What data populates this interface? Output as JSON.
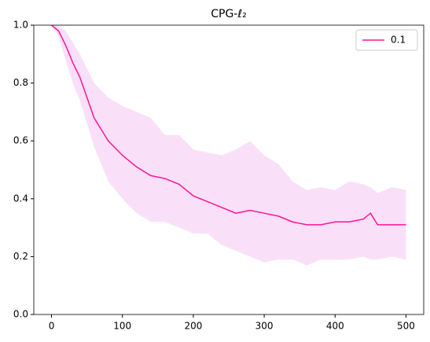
{
  "chart_data": {
    "type": "line",
    "title": "CPG-ℓ₂",
    "x": [
      0,
      10,
      20,
      30,
      40,
      50,
      60,
      80,
      100,
      120,
      140,
      160,
      180,
      200,
      220,
      240,
      260,
      280,
      300,
      320,
      340,
      360,
      380,
      400,
      420,
      440,
      450,
      460,
      480,
      500
    ],
    "series": [
      {
        "name": "0.1",
        "color": "#ff1493",
        "band_color": "#f9e0f8",
        "values": [
          1.0,
          0.98,
          0.93,
          0.87,
          0.82,
          0.75,
          0.68,
          0.6,
          0.55,
          0.51,
          0.48,
          0.47,
          0.45,
          0.41,
          0.39,
          0.37,
          0.35,
          0.36,
          0.35,
          0.34,
          0.32,
          0.31,
          0.31,
          0.32,
          0.32,
          0.33,
          0.35,
          0.31,
          0.31,
          0.31
        ],
        "lower": [
          1.0,
          0.96,
          0.88,
          0.8,
          0.74,
          0.66,
          0.58,
          0.46,
          0.4,
          0.35,
          0.32,
          0.32,
          0.3,
          0.28,
          0.28,
          0.24,
          0.22,
          0.2,
          0.18,
          0.19,
          0.19,
          0.17,
          0.19,
          0.19,
          0.19,
          0.2,
          0.19,
          0.19,
          0.2,
          0.19
        ],
        "upper": [
          1.0,
          1.0,
          0.98,
          0.94,
          0.9,
          0.85,
          0.8,
          0.75,
          0.72,
          0.7,
          0.68,
          0.62,
          0.62,
          0.57,
          0.56,
          0.55,
          0.57,
          0.6,
          0.55,
          0.52,
          0.46,
          0.43,
          0.44,
          0.43,
          0.46,
          0.45,
          0.44,
          0.42,
          0.44,
          0.43
        ]
      }
    ],
    "xlim": [
      -25,
      525
    ],
    "ylim": [
      0,
      1
    ],
    "xticks": [
      0,
      100,
      200,
      300,
      400,
      500
    ],
    "yticks": [
      {
        "value": 0,
        "label": "0.0"
      },
      0.2,
      0.4,
      0.6,
      0.8,
      {
        "value": 1,
        "label": "1.0"
      }
    ],
    "legend": "upper right"
  }
}
